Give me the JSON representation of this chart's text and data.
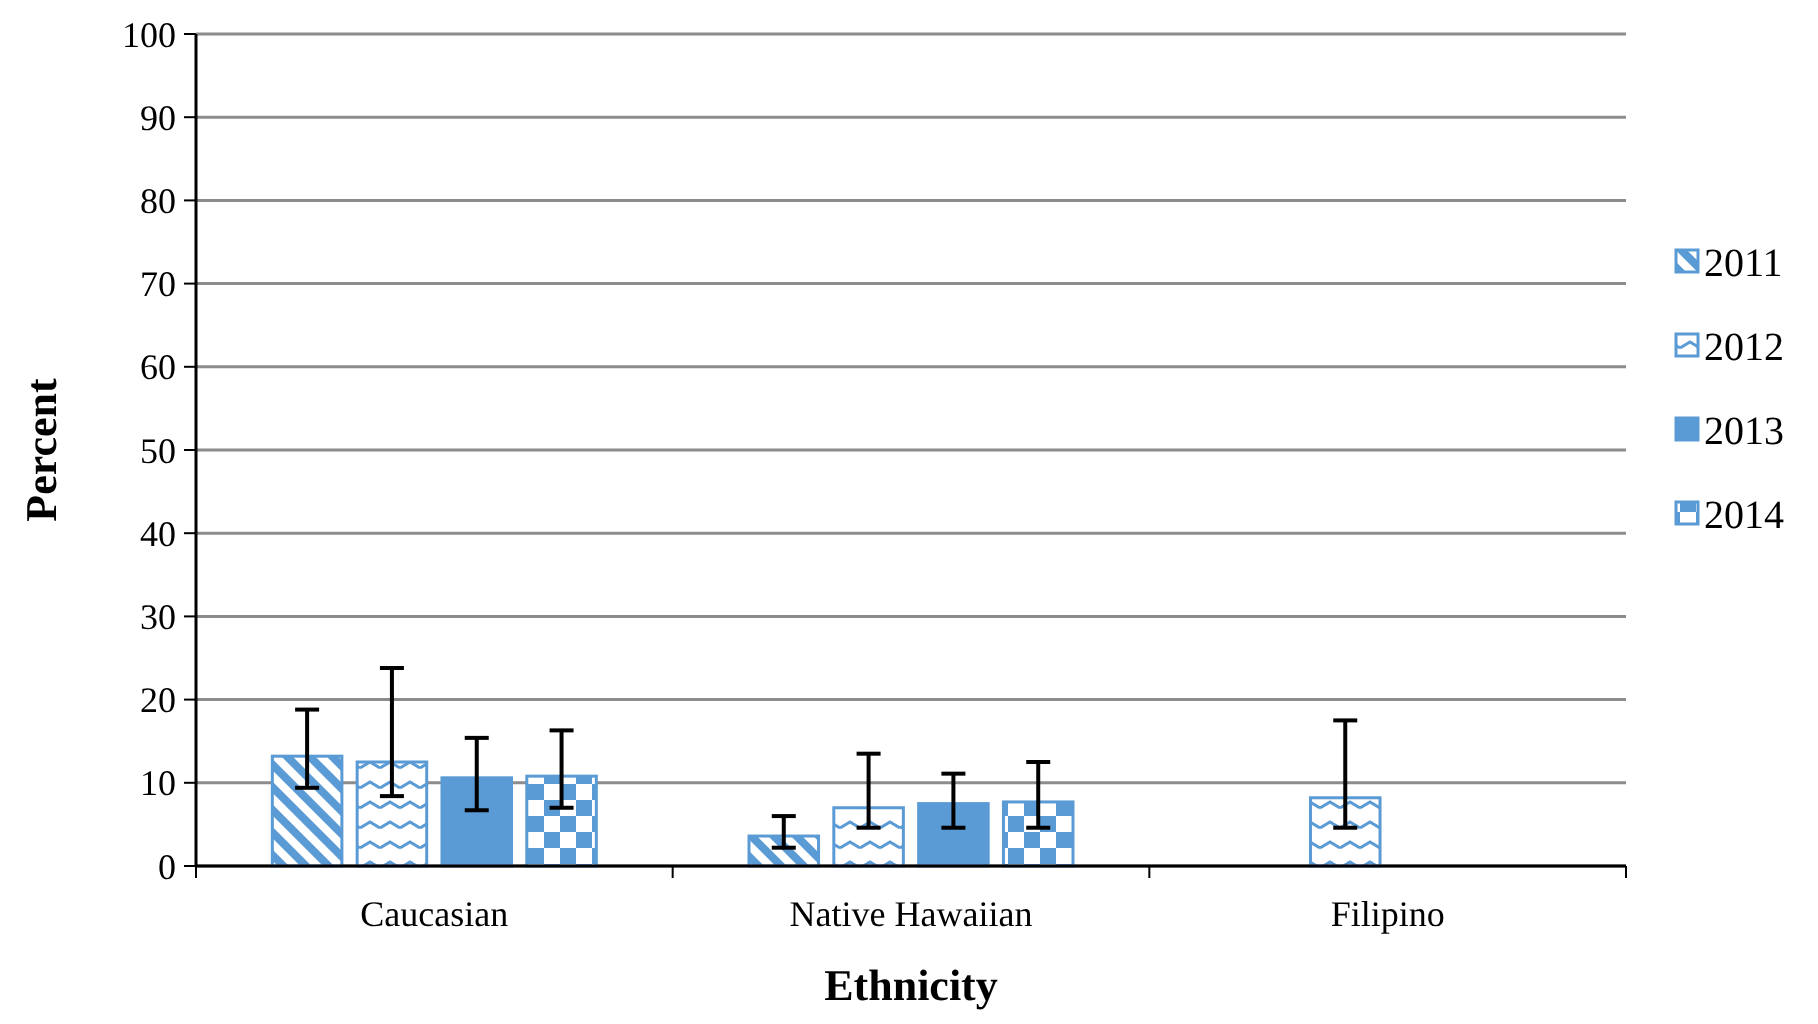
{
  "chart_data": {
    "type": "bar",
    "xlabel": "Ethnicity",
    "ylabel": "Percent",
    "categories": [
      "Caucasian",
      "Native Hawaiian",
      "Filipino"
    ],
    "series": [
      {
        "name": "2011",
        "color": "#5b9bd5",
        "values": [
          13.2,
          3.6,
          null
        ],
        "errors": [
          [
            9.4,
            18.8
          ],
          [
            2.2,
            6.0
          ],
          null
        ]
      },
      {
        "name": "2012",
        "color": "#5b9bd5",
        "values": [
          12.5,
          7.0,
          8.2
        ],
        "errors": [
          [
            8.4,
            23.8
          ],
          [
            4.6,
            13.5
          ],
          [
            4.6,
            17.5
          ]
        ]
      },
      {
        "name": "2013",
        "color": "#5b9bd5",
        "values": [
          10.6,
          7.5,
          null
        ],
        "errors": [
          [
            6.7,
            15.4
          ],
          [
            4.6,
            11.1
          ],
          null
        ]
      },
      {
        "name": "2014",
        "color": "#5b9bd5",
        "values": [
          10.8,
          7.7,
          null
        ],
        "errors": [
          [
            7.0,
            16.3
          ],
          [
            4.6,
            12.5
          ],
          null
        ]
      }
    ],
    "ylim": [
      0,
      100
    ],
    "yticks": [
      0,
      10,
      20,
      30,
      40,
      50,
      60,
      70,
      80,
      90,
      100
    ],
    "grid": "y",
    "legend": "right"
  }
}
